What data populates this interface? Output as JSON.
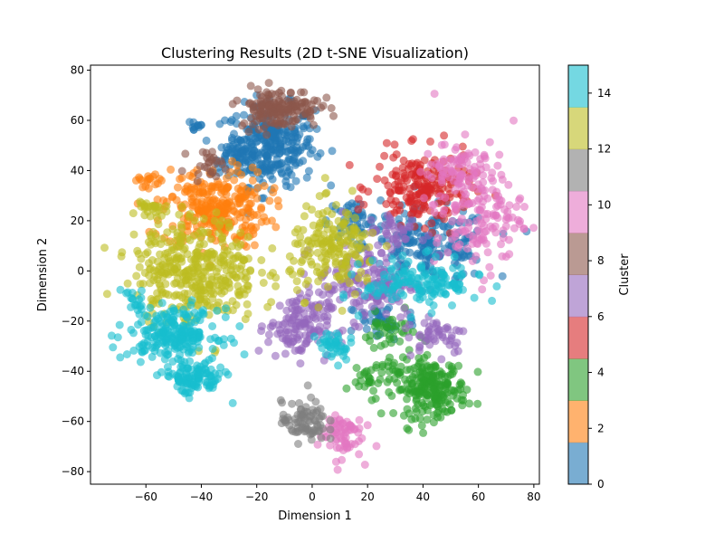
{
  "chart_data": {
    "type": "scatter",
    "title": "Clustering Results (2D t-SNE Visualization)",
    "xlabel": "Dimension 1",
    "ylabel": "Dimension 2",
    "xlim": [
      -80,
      82
    ],
    "ylim": [
      -85,
      82
    ],
    "xticks": [
      -60,
      -40,
      -20,
      0,
      20,
      40,
      60,
      80
    ],
    "yticks": [
      -80,
      -60,
      -40,
      -20,
      0,
      20,
      40,
      60,
      80
    ],
    "grid": false,
    "marker_alpha": 0.6,
    "colorbar": {
      "label": "Cluster",
      "range": [
        0,
        15
      ],
      "ticks": [
        0,
        2,
        4,
        6,
        8,
        10,
        12,
        14
      ],
      "colors": [
        "#1f77b4",
        "#ff7f0e",
        "#2ca02c",
        "#d62728",
        "#9467bd",
        "#8c564b",
        "#e377c2",
        "#7f7f7f",
        "#bcbd22",
        "#17becf"
      ]
    },
    "clusters": [
      {
        "label": 0,
        "color": "#1f77b4",
        "regions": [
          [
            -15,
            50,
            10,
            10,
            300
          ],
          [
            -28,
            45,
            5,
            4,
            40
          ],
          [
            -42,
            58,
            2,
            2,
            10
          ],
          [
            42,
            10,
            14,
            9,
            200
          ],
          [
            15,
            20,
            6,
            5,
            50
          ],
          [
            25,
            -20,
            8,
            5,
            40
          ]
        ]
      },
      {
        "label": 1,
        "color": "#ff7f0e",
        "regions": [
          [
            -35,
            25,
            12,
            10,
            280
          ],
          [
            -60,
            36,
            2.5,
            1.5,
            15
          ]
        ]
      },
      {
        "label": 2,
        "color": "#2ca02c",
        "regions": [
          [
            43,
            -47,
            8,
            7,
            220
          ],
          [
            22,
            -42,
            6,
            5,
            40
          ],
          [
            28,
            -25,
            6,
            5,
            40
          ]
        ]
      },
      {
        "label": 3,
        "color": "#d62728",
        "regions": [
          [
            40,
            33,
            11,
            9,
            200
          ]
        ]
      },
      {
        "label": 4,
        "color": "#9467bd",
        "regions": [
          [
            -5,
            -22,
            7,
            8,
            130
          ],
          [
            20,
            -5,
            11,
            9,
            150
          ],
          [
            45,
            -25,
            7,
            5,
            50
          ],
          [
            30,
            15,
            7,
            5,
            40
          ]
        ]
      },
      {
        "label": 5,
        "color": "#8c564b",
        "regions": [
          [
            -12,
            65,
            9,
            5,
            160
          ],
          [
            -38,
            43,
            4,
            3,
            25
          ]
        ]
      },
      {
        "label": 6,
        "color": "#e377c2",
        "regions": [
          [
            60,
            25,
            10,
            16,
            180
          ],
          [
            10,
            -65,
            5,
            6,
            70
          ],
          [
            50,
            40,
            6,
            6,
            40
          ]
        ]
      },
      {
        "label": 7,
        "color": "#7f7f7f",
        "regions": [
          [
            -3,
            -60,
            5,
            5,
            80
          ]
        ]
      },
      {
        "label": 8,
        "color": "#bcbd22",
        "regions": [
          [
            -42,
            0,
            14,
            13,
            380
          ],
          [
            8,
            8,
            10,
            11,
            180
          ],
          [
            -58,
            25,
            3,
            2.5,
            25
          ]
        ]
      },
      {
        "label": 9,
        "color": "#17becf",
        "regions": [
          [
            -50,
            -25,
            10,
            6,
            220
          ],
          [
            -43,
            -43,
            7,
            4,
            110
          ],
          [
            40,
            -5,
            13,
            6,
            150
          ],
          [
            8,
            -30,
            4,
            4,
            40
          ],
          [
            -65,
            -13,
            2.5,
            5,
            20
          ]
        ]
      }
    ]
  }
}
